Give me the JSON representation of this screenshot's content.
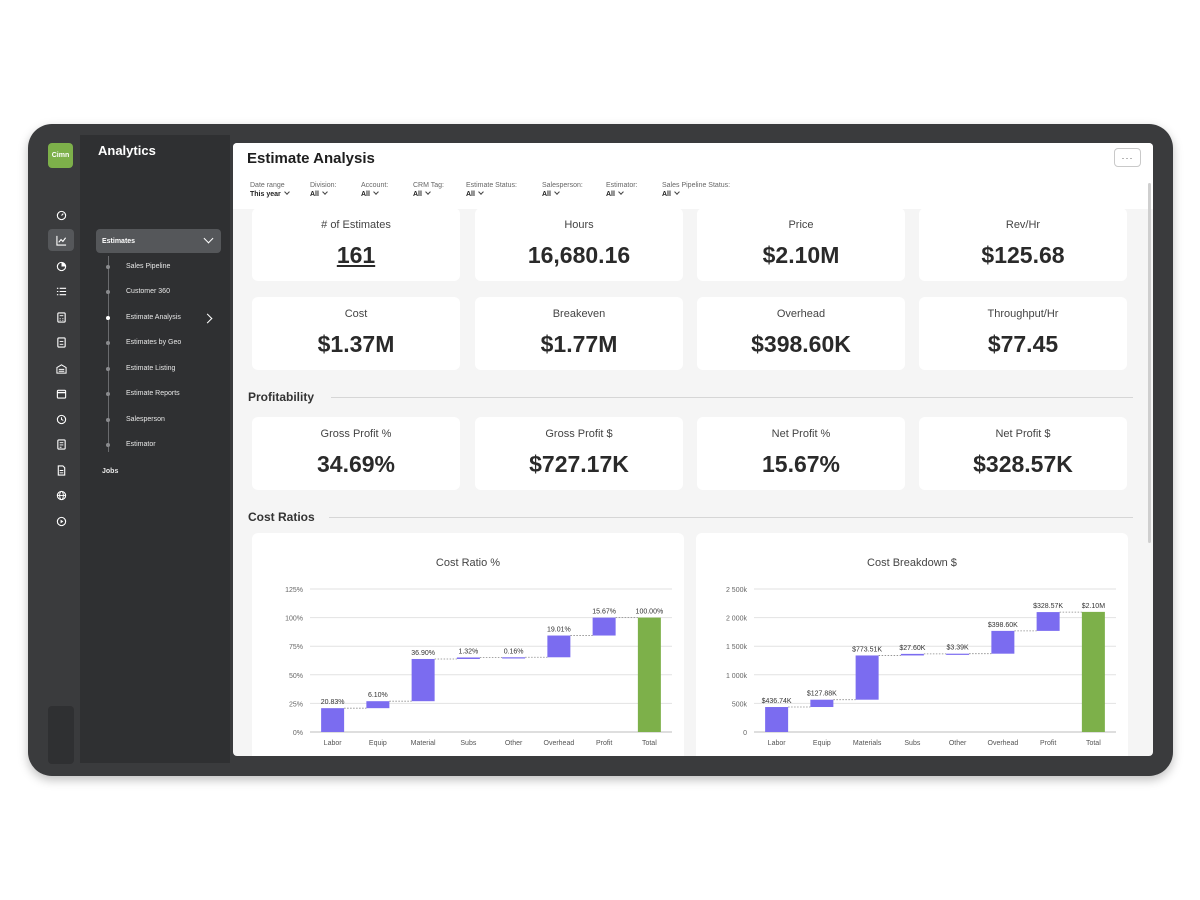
{
  "app": {
    "logo_text": "Cimn",
    "title": "Analytics"
  },
  "rail_icons": [
    "dashboard-icon",
    "line-chart-icon",
    "pie-chart-icon",
    "list-icon",
    "calculator-icon",
    "document-icon",
    "building-icon",
    "calendar-icon",
    "clock-icon",
    "invoice-icon",
    "file-icon",
    "globe-icon",
    "play-icon",
    "help-icon",
    "settings-icon"
  ],
  "nav": {
    "group_label": "Estimates",
    "items": [
      "Sales Pipeline",
      "Customer 360",
      "Estimate Analysis",
      "Estimates by Geo",
      "Estimate Listing",
      "Estimate Reports",
      "Salesperson",
      "Estimator"
    ],
    "active_item": "Estimate Analysis",
    "jobs_label": "Jobs"
  },
  "page": {
    "title": "Estimate Analysis",
    "more_label": "···"
  },
  "filters": [
    {
      "label": "Date range",
      "value": "This year"
    },
    {
      "label": "Division:",
      "value": "All"
    },
    {
      "label": "Account:",
      "value": "All"
    },
    {
      "label": "CRM Tag:",
      "value": "All"
    },
    {
      "label": "Estimate Status:",
      "value": "All"
    },
    {
      "label": "Salesperson:",
      "value": "All"
    },
    {
      "label": "Estimator:",
      "value": "All"
    },
    {
      "label": "Sales Pipeline Status:",
      "value": "All"
    }
  ],
  "kpis_row1": [
    {
      "label": "# of Estimates",
      "value": "161"
    },
    {
      "label": "Hours",
      "value": "16,680.16"
    },
    {
      "label": "Price",
      "value": "$2.10M"
    },
    {
      "label": "Rev/Hr",
      "value": "$125.68"
    }
  ],
  "kpis_row2": [
    {
      "label": "Cost",
      "value": "$1.37M"
    },
    {
      "label": "Breakeven",
      "value": "$1.77M"
    },
    {
      "label": "Overhead",
      "value": "$398.60K"
    },
    {
      "label": "Throughput/Hr",
      "value": "$77.45"
    }
  ],
  "sections": {
    "profitability": "Profitability",
    "cost_ratios": "Cost Ratios"
  },
  "kpis_profit": [
    {
      "label": "Gross Profit %",
      "value": "34.69%"
    },
    {
      "label": "Gross Profit $",
      "value": "$727.17K"
    },
    {
      "label": "Net Profit %",
      "value": "15.67%"
    },
    {
      "label": "Net Profit $",
      "value": "$328.57K"
    }
  ],
  "colors": {
    "bar": "#7b6cf0",
    "total": "#7db04a"
  },
  "chart_data": [
    {
      "type": "bar",
      "title": "Cost Ratio %",
      "categories": [
        "Labor",
        "Equip",
        "Material",
        "Subs",
        "Other",
        "Overhead",
        "Profit",
        "Total"
      ],
      "values": [
        20.83,
        6.1,
        36.9,
        1.32,
        0.16,
        19.01,
        15.67,
        100.0
      ],
      "labels": [
        "20.83%",
        "6.10%",
        "36.90%",
        "1.32%",
        "0.16%",
        "19.01%",
        "15.67%",
        "100.00%"
      ],
      "ylim": [
        0,
        125
      ],
      "yticks": [
        0,
        25,
        50,
        75,
        100,
        125
      ],
      "yticklabels": [
        "0%",
        "25%",
        "50%",
        "75%",
        "100%",
        "125%"
      ],
      "waterfall": true,
      "grid": true
    },
    {
      "type": "bar",
      "title": "Cost Breakdown $",
      "categories": [
        "Labor",
        "Equip",
        "Materials",
        "Subs",
        "Other",
        "Overhead",
        "Profit",
        "Total"
      ],
      "values": [
        436.74,
        127.88,
        773.51,
        27.6,
        3.39,
        398.6,
        328.57,
        2100
      ],
      "labels": [
        "$436.74K",
        "$127.88K",
        "$773.51K",
        "$27.60K",
        "$3.39K",
        "$398.60K",
        "$328.57K",
        "$2.10M"
      ],
      "ylim": [
        0,
        2500
      ],
      "yticks": [
        0,
        500,
        1000,
        1500,
        2000,
        2500
      ],
      "yticklabels": [
        "0",
        "500k",
        "1 000k",
        "1 500k",
        "2 000k",
        "2 500k"
      ],
      "waterfall": true,
      "grid": true
    }
  ]
}
